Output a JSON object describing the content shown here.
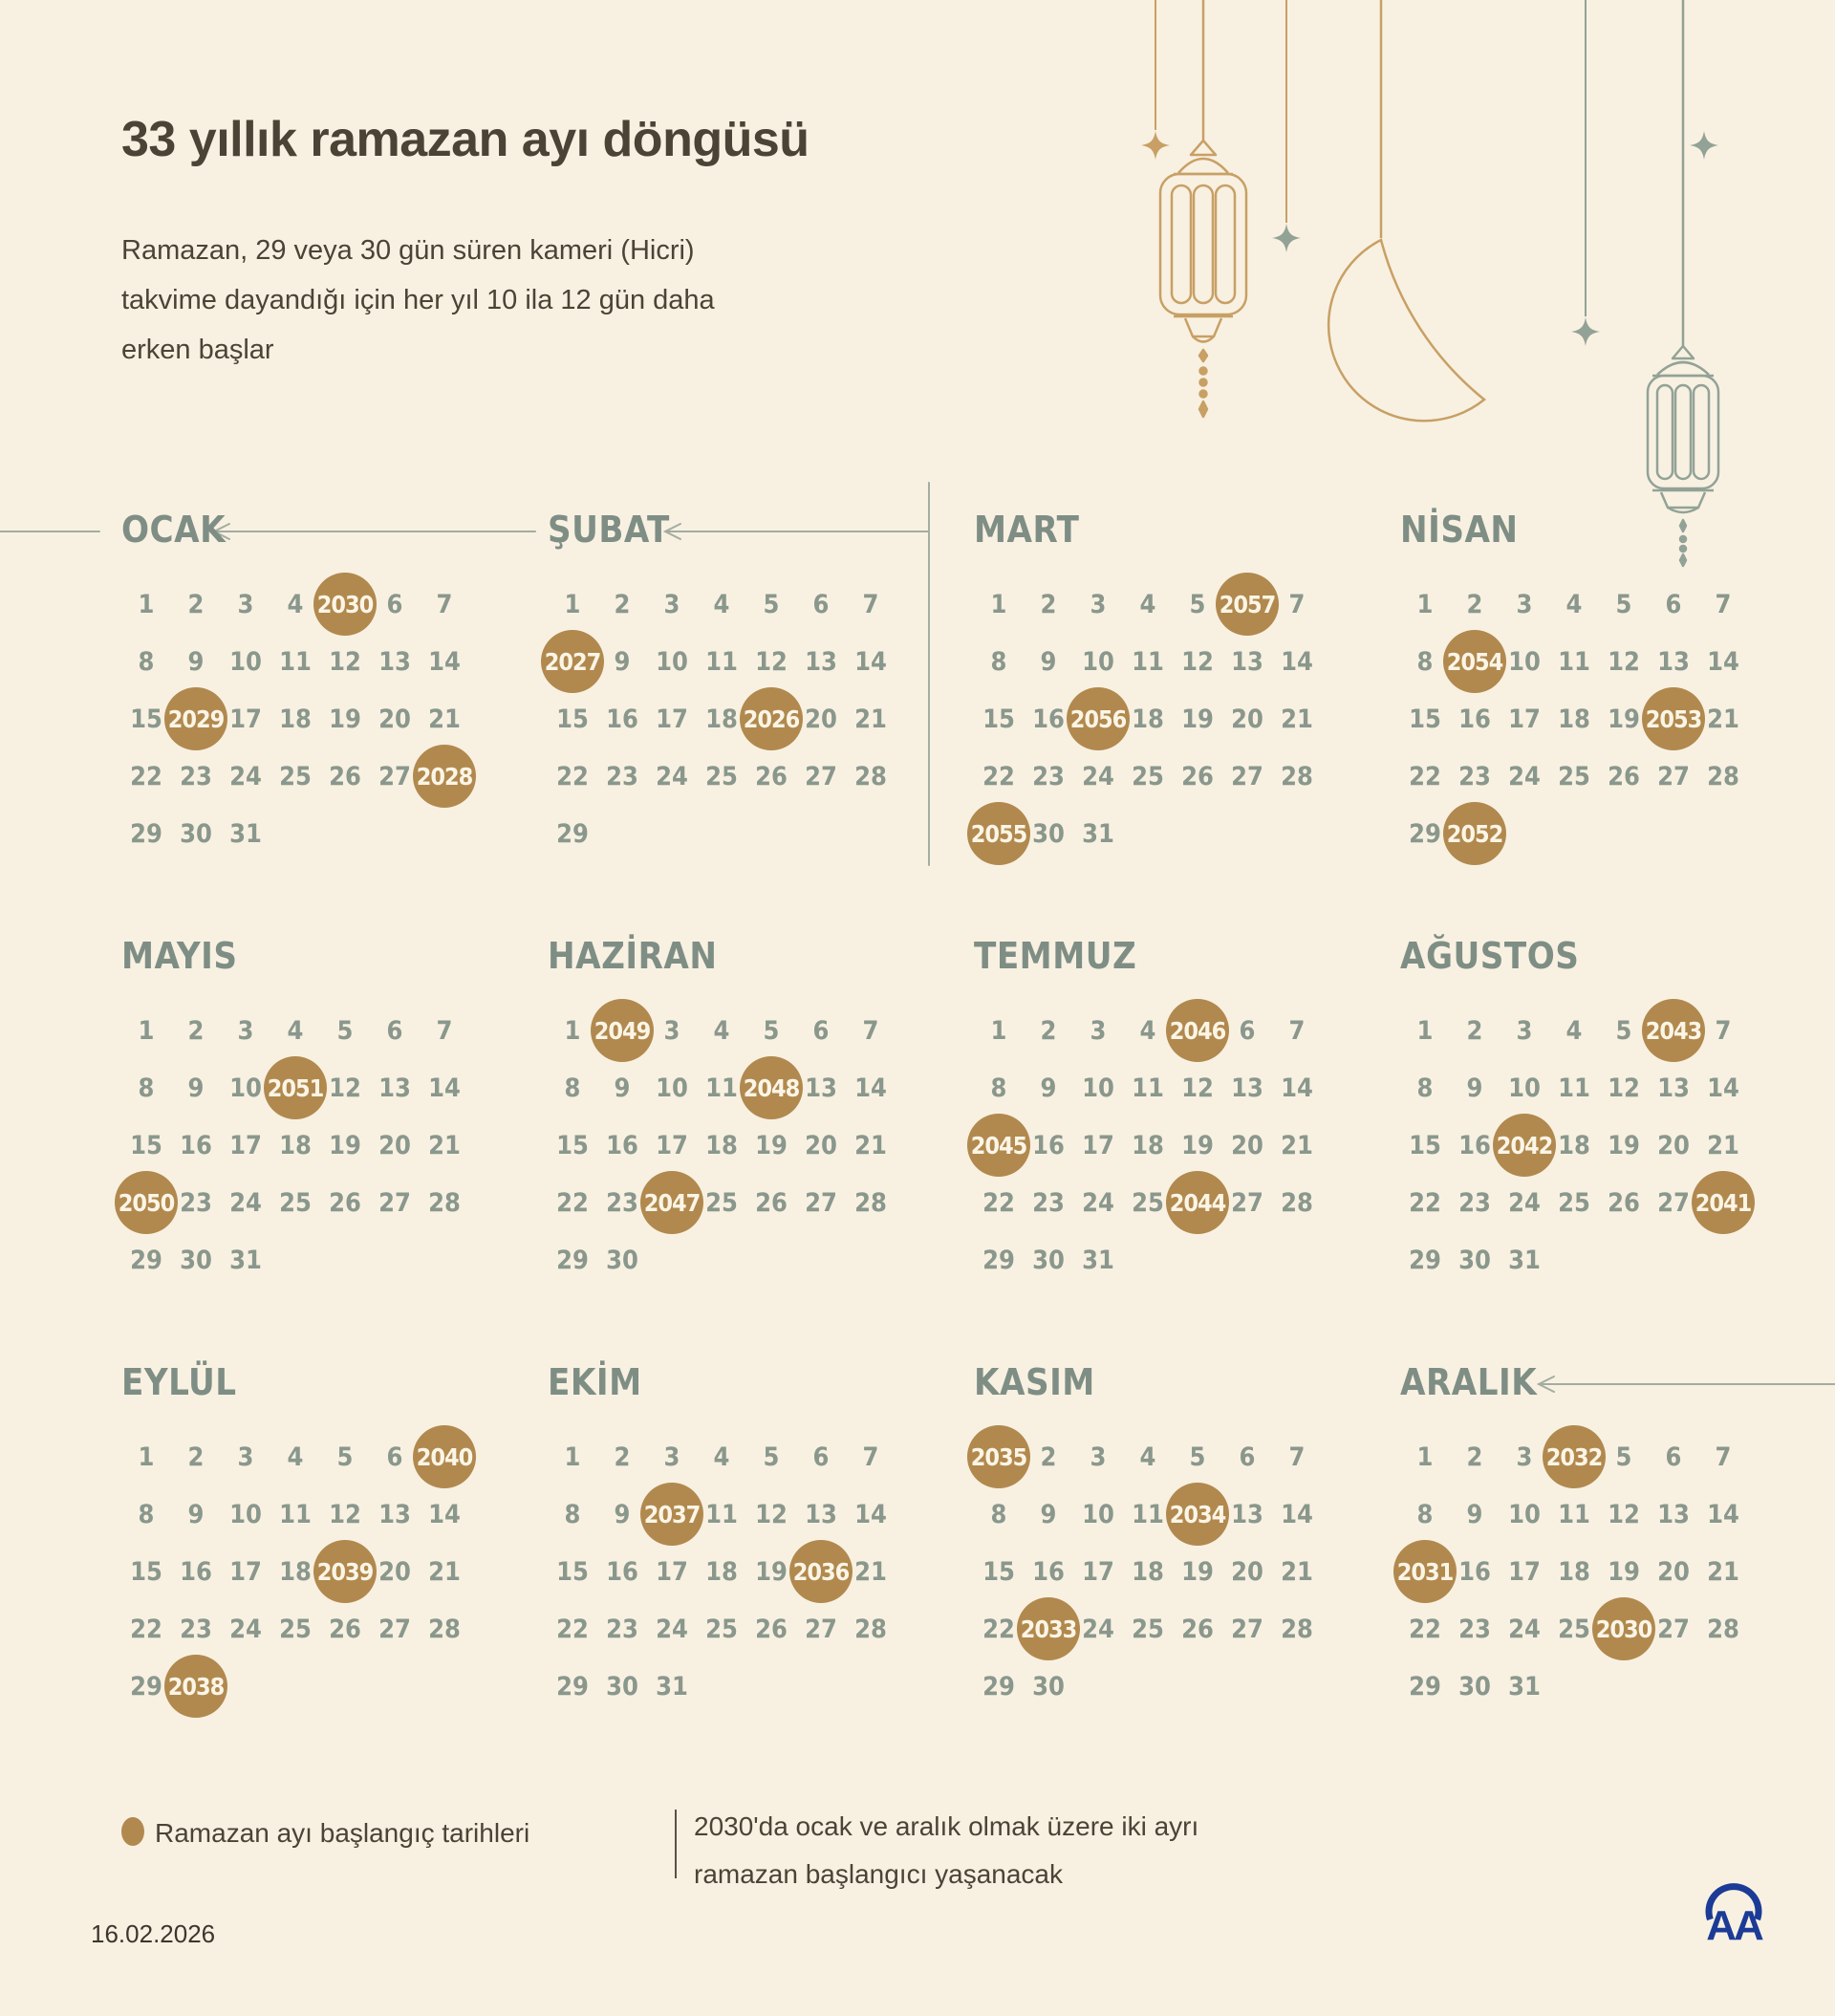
{
  "header": {
    "title": "33 yıllık ramazan ayı döngüsü",
    "subtitle_lines": [
      "Ramazan, 29 veya 30 gün süren kameri (Hicri)",
      "takvime dayandığı için her yıl 10 ila 12 gün daha",
      "erken başlar"
    ]
  },
  "calendar": {
    "months": [
      {
        "name": "OCAK",
        "days": 31,
        "arrow": true,
        "marks": [
          {
            "day": 5,
            "year": 2030
          },
          {
            "day": 16,
            "year": 2029
          },
          {
            "day": 28,
            "year": 2028
          }
        ]
      },
      {
        "name": "ŞUBAT",
        "days": 29,
        "arrow": true,
        "marks": [
          {
            "day": 8,
            "year": 2027
          },
          {
            "day": 19,
            "year": 2026
          }
        ]
      },
      {
        "name": "MART",
        "days": 31,
        "arrow": false,
        "marks": [
          {
            "day": 6,
            "year": 2057
          },
          {
            "day": 17,
            "year": 2056
          },
          {
            "day": 29,
            "year": 2055
          }
        ]
      },
      {
        "name": "NİSAN",
        "days": 30,
        "arrow": false,
        "marks": [
          {
            "day": 9,
            "year": 2054
          },
          {
            "day": 20,
            "year": 2053
          },
          {
            "day": 30,
            "year": 2052
          }
        ]
      },
      {
        "name": "MAYIS",
        "days": 31,
        "arrow": false,
        "marks": [
          {
            "day": 11,
            "year": 2051
          },
          {
            "day": 22,
            "year": 2050
          }
        ]
      },
      {
        "name": "HAZİRAN",
        "days": 30,
        "arrow": false,
        "marks": [
          {
            "day": 2,
            "year": 2049
          },
          {
            "day": 12,
            "year": 2048
          },
          {
            "day": 24,
            "year": 2047
          }
        ]
      },
      {
        "name": "TEMMUZ",
        "days": 31,
        "arrow": false,
        "marks": [
          {
            "day": 5,
            "year": 2046
          },
          {
            "day": 15,
            "year": 2045
          },
          {
            "day": 26,
            "year": 2044
          }
        ]
      },
      {
        "name": "AĞUSTOS",
        "days": 31,
        "arrow": false,
        "marks": [
          {
            "day": 6,
            "year": 2043
          },
          {
            "day": 17,
            "year": 2042
          },
          {
            "day": 28,
            "year": 2041
          }
        ]
      },
      {
        "name": "EYLÜL",
        "days": 30,
        "arrow": false,
        "marks": [
          {
            "day": 7,
            "year": 2040
          },
          {
            "day": 19,
            "year": 2039
          },
          {
            "day": 30,
            "year": 2038
          }
        ]
      },
      {
        "name": "EKİM",
        "days": 31,
        "arrow": false,
        "marks": [
          {
            "day": 10,
            "year": 2037
          },
          {
            "day": 20,
            "year": 2036
          }
        ]
      },
      {
        "name": "KASIM",
        "days": 30,
        "arrow": false,
        "marks": [
          {
            "day": 1,
            "year": 2035
          },
          {
            "day": 12,
            "year": 2034
          },
          {
            "day": 23,
            "year": 2033
          }
        ]
      },
      {
        "name": "ARALIK",
        "days": 31,
        "arrow": true,
        "marks": [
          {
            "day": 4,
            "year": 2032
          },
          {
            "day": 15,
            "year": 2031
          },
          {
            "day": 26,
            "year": 2030
          }
        ]
      }
    ]
  },
  "legend": {
    "label": "Ramazan ayı başlangıç tarihleri",
    "note_lines": [
      "2030'da ocak ve aralık olmak üzere iki ayrı",
      "ramazan başlangıcı yaşanacak"
    ]
  },
  "footer": {
    "date": "16.02.2026",
    "agency": "AA"
  },
  "colors": {
    "background": "#f8f1e2",
    "accent": "#b1894e",
    "bubble_text": "#fbf5e6",
    "sage": "#8a978c",
    "sage_title": "#7f8e85",
    "dark": "#4c4337",
    "gold": "#c8a065",
    "line": "#a3ada0",
    "logo_blue": "#1b3b96"
  },
  "icons": {
    "decorations": [
      "hanging-lantern-icon",
      "crescent-moon-icon",
      "sparkle-star-icon"
    ],
    "legend_marker": "dot-icon",
    "agency_logo": "aa-logo"
  }
}
